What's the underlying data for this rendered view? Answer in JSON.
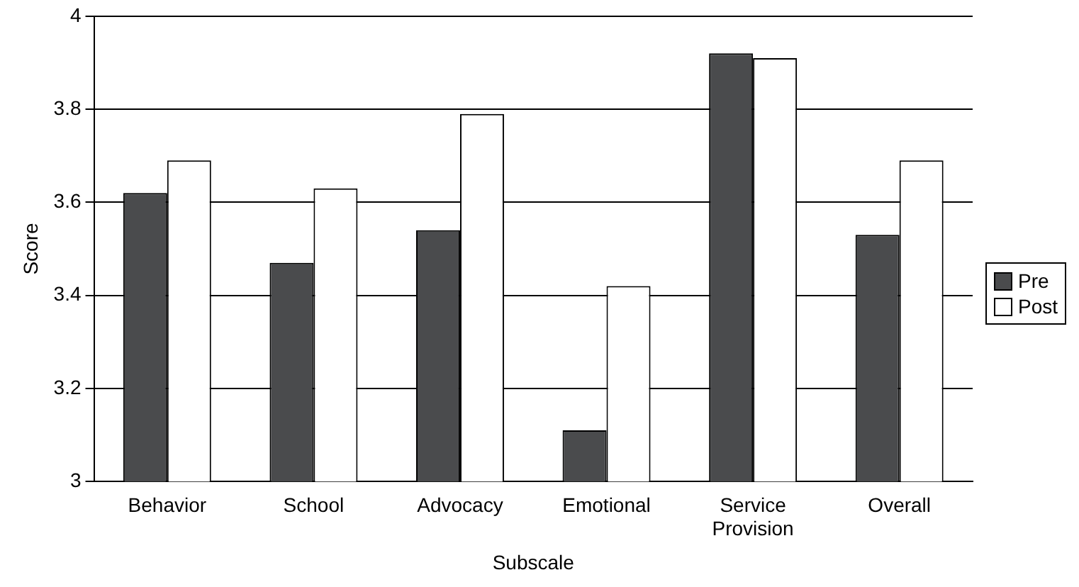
{
  "chart_data": {
    "type": "bar",
    "xlabel": "Subscale",
    "ylabel": "Score",
    "categories": [
      "Behavior",
      "School",
      "Advocacy",
      "Emotional",
      "Service Provision",
      "Overall"
    ],
    "series": [
      {
        "name": "Pre",
        "color": "#4a4b4d",
        "values": [
          3.62,
          3.47,
          3.54,
          3.11,
          3.92,
          3.53
        ]
      },
      {
        "name": "Post",
        "color": "#ffffff",
        "values": [
          3.69,
          3.63,
          3.79,
          3.42,
          3.91,
          3.69
        ]
      }
    ],
    "ylim": [
      3,
      4
    ],
    "yticks": [
      3,
      3.2,
      3.4,
      3.6,
      3.8,
      4
    ],
    "grid": "y",
    "legend": "right"
  }
}
